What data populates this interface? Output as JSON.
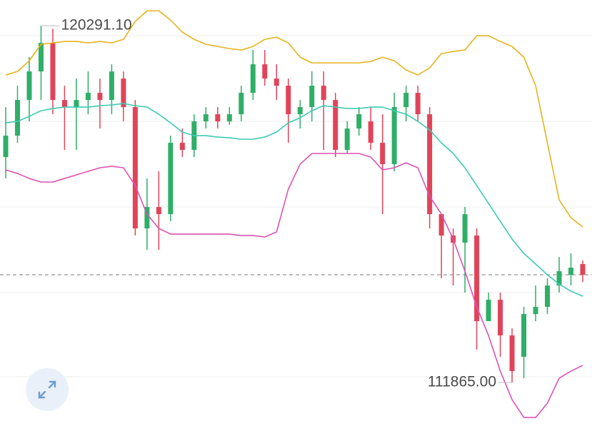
{
  "chart_data": {
    "type": "candlestick",
    "ylim": [
      110840,
      120900
    ],
    "up_color": "#2fae68",
    "down_color": "#e04459",
    "open": [
      117191,
      117697,
      118539,
      119213,
      119887,
      118539,
      118371,
      118539,
      118708,
      118539,
      119045,
      118371,
      115506,
      116012,
      115843,
      117528,
      117360,
      118034,
      118202,
      118034,
      118202,
      118708,
      119382,
      119045,
      118876,
      118202,
      118371,
      118876,
      118539,
      117360,
      117865,
      118034,
      117528,
      117023,
      118371,
      118708,
      118202,
      115843,
      115338,
      115169,
      115338,
      113316,
      113821,
      112979,
      112473,
      113484,
      113653,
      114158,
      114411,
      114664
    ],
    "close": [
      117697,
      118539,
      119213,
      119887,
      118539,
      118371,
      118539,
      118708,
      118539,
      119213,
      118371,
      115506,
      116012,
      115843,
      117528,
      117360,
      118034,
      118202,
      118034,
      118202,
      118708,
      119382,
      119045,
      118876,
      118202,
      118371,
      118876,
      118539,
      117360,
      117865,
      118202,
      117528,
      117023,
      118371,
      118708,
      118202,
      115843,
      115338,
      115169,
      115843,
      113316,
      113821,
      112979,
      112136,
      113484,
      113653,
      114158,
      114495,
      114579,
      114411
    ],
    "high": [
      118371,
      118876,
      119550,
      120291.1,
      120224,
      118876,
      119045,
      119213,
      119045,
      119382,
      119213,
      118539,
      116686,
      116854,
      117697,
      117865,
      118202,
      118371,
      118371,
      118371,
      118876,
      119719,
      119719,
      119382,
      119045,
      118539,
      119213,
      119213,
      118708,
      118034,
      118371,
      118371,
      118202,
      118708,
      118876,
      118876,
      118371,
      115843,
      115506,
      116012,
      115506,
      113990,
      113990,
      113147,
      113653,
      114158,
      114327,
      114832,
      114916,
      114748
    ],
    "low": [
      116686,
      117528,
      118034,
      118539,
      118202,
      117360,
      117360,
      118202,
      117865,
      118202,
      118034,
      115338,
      115001,
      115001,
      115675,
      117191,
      117191,
      117865,
      117865,
      117949,
      118034,
      118539,
      118876,
      118539,
      117528,
      117865,
      118034,
      117360,
      117191,
      117275,
      117697,
      117360,
      115843,
      116854,
      118034,
      118034,
      115506,
      114327,
      114158,
      113990,
      112642,
      113316,
      112473,
      111865,
      111968,
      113316,
      113484,
      113990,
      114158,
      114242
    ],
    "bands": [
      {
        "color": "#e6b31e",
        "values": [
          119129,
          119213,
          119466,
          119853,
          119887,
          119921,
          119921,
          119887,
          119921,
          119887,
          119971,
          120393,
          120645,
          120645,
          120426,
          120140,
          119971,
          119853,
          119803,
          119752,
          119719,
          119803,
          119971,
          120022,
          119887,
          119550,
          119415,
          119415,
          119415,
          119415,
          119415,
          119449,
          119550,
          119466,
          119247,
          119129,
          119297,
          119634,
          119685,
          119719,
          120056,
          120056,
          119921,
          119803,
          119550,
          118876,
          117528,
          116180,
          115759,
          115540
        ]
      },
      {
        "color": "#3ccbb0",
        "values": [
          118000,
          118034,
          118152,
          118286,
          118337,
          118371,
          118371,
          118371,
          118404,
          118421,
          118455,
          118404,
          118371,
          118202,
          118000,
          117781,
          117697,
          117697,
          117663,
          117646,
          117612,
          117612,
          117663,
          117781,
          118000,
          118118,
          118286,
          118404,
          118371,
          118337,
          118337,
          118371,
          118371,
          118286,
          118202,
          118034,
          117831,
          117528,
          117275,
          116938,
          116517,
          116096,
          115675,
          115254,
          114916,
          114664,
          114411,
          114192,
          114024,
          113905
        ]
      },
      {
        "color": "#dc52b4",
        "values": [
          116888,
          116804,
          116686,
          116601,
          116601,
          116686,
          116770,
          116854,
          116938,
          116972,
          116938,
          116517,
          115843,
          115506,
          115372,
          115372,
          115372,
          115372,
          115372,
          115372,
          115338,
          115338,
          115304,
          115422,
          116433,
          117023,
          117275,
          117275,
          117275,
          117275,
          117275,
          117191,
          116888,
          116938,
          117056,
          116938,
          116264,
          115843,
          115254,
          114495,
          113653,
          112979,
          112136,
          111462,
          111041,
          111041,
          111378,
          111968,
          112136,
          112271
        ]
      }
    ],
    "annotations": [
      {
        "text": "120291.10",
        "value": 120291.1
      },
      {
        "text": "111865.00",
        "value": 111865
      }
    ]
  }
}
